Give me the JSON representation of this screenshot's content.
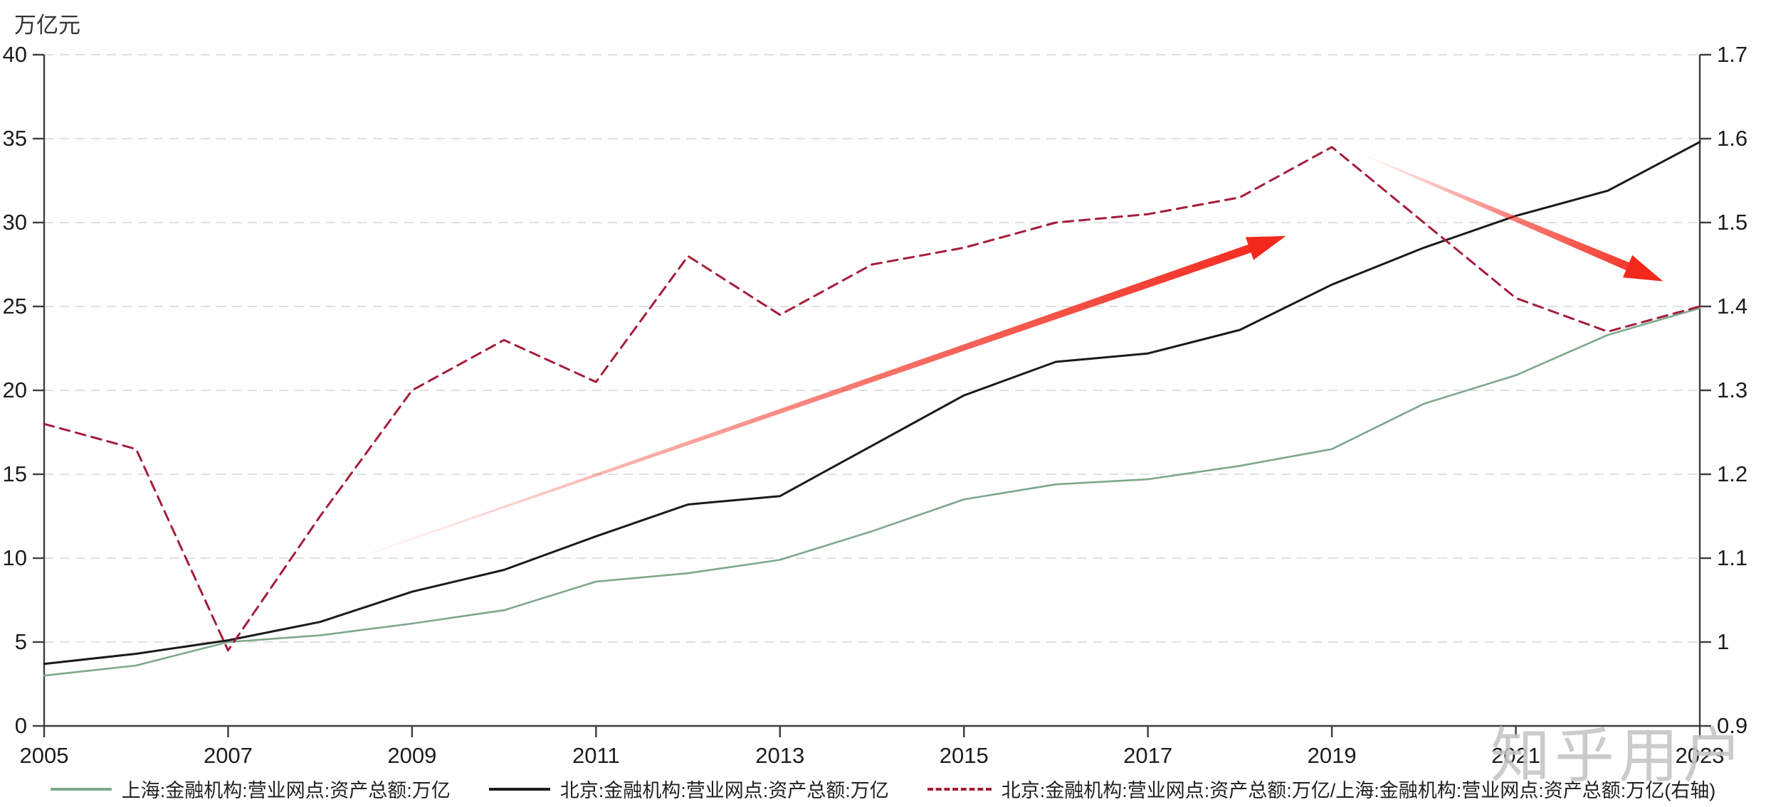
{
  "unit_label": "万亿元",
  "watermark": "知乎用户",
  "colors": {
    "shanghai_line": "#7da88c",
    "beijing_line": "#1a1a1a",
    "ratio_line": "#a31d3a",
    "arrow_red": "#f3281c",
    "grid": "#d6d6d6",
    "axis": "#3c3c3c",
    "tick_text": "#1c1c1c"
  },
  "legend": [
    {
      "label": "上海:金融机构:营业网点:资产总额:万亿",
      "swatch": "solid-green"
    },
    {
      "label": "北京:金融机构:营业网点:资产总额:万亿",
      "swatch": "solid-black"
    },
    {
      "label": "北京:金融机构:营业网点:资产总额:万亿/上海:金融机构:营业网点:资产总额:万亿(右轴)",
      "swatch": "dashed-red"
    }
  ],
  "chart_data": {
    "type": "line",
    "x": [
      2005,
      2006,
      2007,
      2008,
      2009,
      2010,
      2011,
      2012,
      2013,
      2014,
      2015,
      2016,
      2017,
      2018,
      2019,
      2020,
      2021,
      2022,
      2023
    ],
    "series": [
      {
        "name": "上海:金融机构:营业网点:资产总额:万亿",
        "axis": "left",
        "style": "solid",
        "color": "#7da88c",
        "width": 2.6,
        "values": [
          3.0,
          3.6,
          5.0,
          5.4,
          6.1,
          6.9,
          8.6,
          9.1,
          9.9,
          11.6,
          13.5,
          14.4,
          14.7,
          15.5,
          16.5,
          19.2,
          20.9,
          23.3,
          24.9
        ]
      },
      {
        "name": "北京:金融机构:营业网点:资产总额:万亿",
        "axis": "left",
        "style": "solid",
        "color": "#1a1a1a",
        "width": 3,
        "values": [
          3.7,
          4.3,
          5.1,
          6.2,
          8.0,
          9.3,
          11.3,
          13.2,
          13.7,
          16.7,
          19.7,
          21.7,
          22.2,
          23.6,
          26.3,
          28.5,
          30.4,
          31.9,
          34.8
        ]
      },
      {
        "name": "北京:金融机构:营业网点:资产总额:万亿/上海:金融机构:营业网点:资产总额:万亿(右轴)",
        "axis": "right",
        "style": "dashed",
        "color": "#a31d3a",
        "width": 3,
        "values": [
          1.26,
          1.23,
          0.99,
          1.15,
          1.3,
          1.36,
          1.31,
          1.46,
          1.39,
          1.45,
          1.47,
          1.5,
          1.51,
          1.53,
          1.59,
          1.5,
          1.41,
          1.37,
          1.4
        ]
      }
    ],
    "left_axis": {
      "min": 0,
      "max": 40,
      "tick_step": 5,
      "tick_labels": [
        "0",
        "5",
        "10",
        "15",
        "20",
        "25",
        "30",
        "35",
        "40"
      ],
      "title": "万亿元"
    },
    "right_axis": {
      "min": 0.9,
      "max": 1.7,
      "tick_step": 0.1,
      "tick_labels": [
        "0.9",
        "1",
        "1.1",
        "1.2",
        "1.3",
        "1.4",
        "1.5",
        "1.6",
        "1.7"
      ]
    },
    "x_axis": {
      "tick_labels": [
        "2005",
        "2007",
        "2009",
        "2011",
        "2013",
        "2015",
        "2017",
        "2019",
        "2021",
        "2023"
      ]
    },
    "grid": "horizontal-dashed",
    "legend_position": "bottom",
    "annotations": [
      {
        "kind": "trend-arrow-up",
        "from_year": 2008.5,
        "from_left_value": 10.2,
        "to_year": 2018.5,
        "to_left_value": 29.2
      },
      {
        "kind": "trend-arrow-down",
        "from_year": 2019.4,
        "from_left_value": 33.9,
        "to_year": 2022.6,
        "to_left_value": 26.5
      }
    ]
  }
}
